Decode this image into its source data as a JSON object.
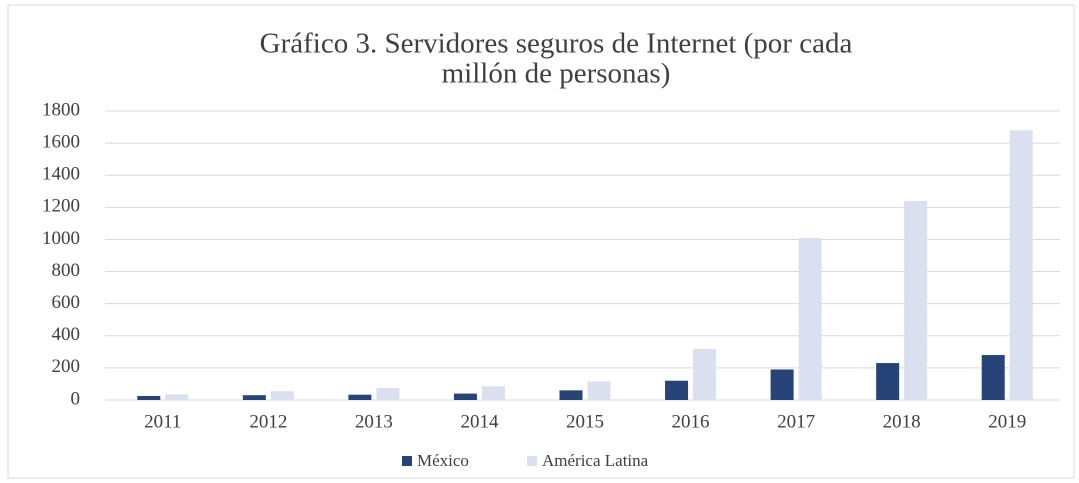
{
  "chart_data": {
    "type": "bar",
    "title": [
      "Gráfico  3. Servidores  seguros  de Internet  (por cada",
      "millón  de personas)"
    ],
    "categories": [
      "2011",
      "2012",
      "2013",
      "2014",
      "2015",
      "2016",
      "2017",
      "2018",
      "2019"
    ],
    "series": [
      {
        "name": "México",
        "color": "#264478",
        "values": [
          25,
          30,
          33,
          40,
          60,
          120,
          190,
          230,
          280
        ]
      },
      {
        "name": "América Latina",
        "color": "#dae0ef",
        "values": [
          35,
          55,
          75,
          85,
          115,
          318,
          1010,
          1240,
          1680
        ]
      }
    ],
    "ylim": [
      0,
      1800
    ],
    "yticks": [
      0,
      200,
      400,
      600,
      800,
      1000,
      1200,
      1400,
      1600,
      1800
    ],
    "grid": true,
    "legend": "bottom"
  }
}
